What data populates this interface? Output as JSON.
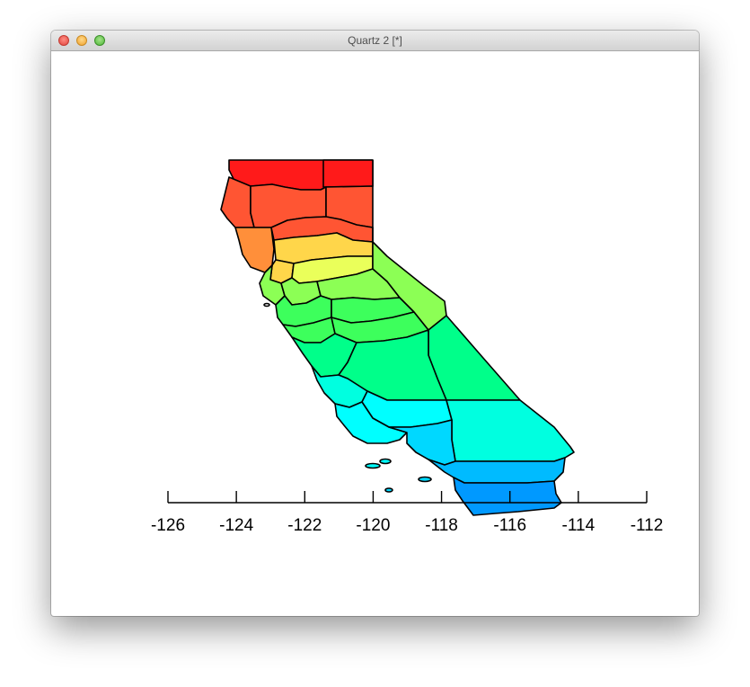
{
  "window": {
    "title": "Quartz 2 [*]",
    "buttons": [
      "close",
      "minimize",
      "zoom"
    ]
  },
  "map": {
    "region": "California counties",
    "fill_palette": "rainbow (red in north to blue in south)",
    "fill_colors": [
      "#ff1a1a",
      "#ff5533",
      "#ff8f3a",
      "#ffd64a",
      "#eaff5a",
      "#8cff55",
      "#3dff5c",
      "#00ff8a",
      "#00ffe0",
      "#00ffff",
      "#00d8ff",
      "#00bbff",
      "#0099ff"
    ],
    "outline_color": "#000000",
    "longitude_range": [
      -126,
      -112
    ]
  },
  "axis": {
    "side": "bottom",
    "ticks": [
      "-126",
      "-124",
      "-122",
      "-120",
      "-118",
      "-116",
      "-114",
      "-112"
    ]
  }
}
